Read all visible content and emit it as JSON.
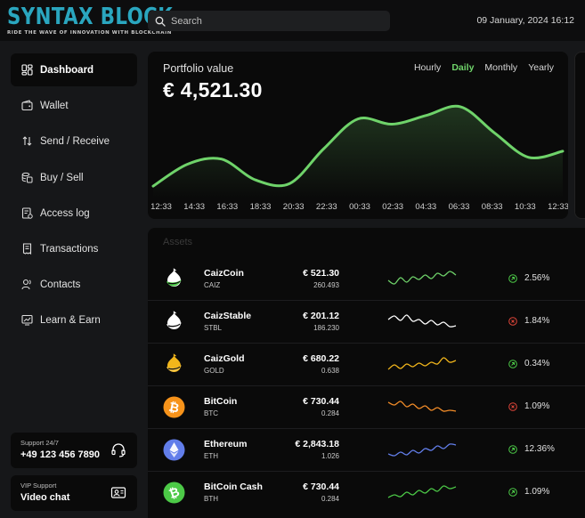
{
  "brand": {
    "title": "SYNTAX BLOCK",
    "tagline": "RIDE THE WAVE OF INNOVATION WITH BLOCKCHAIN"
  },
  "search": {
    "placeholder": "Search"
  },
  "datetime": "09 January, 2024 16:12",
  "nav": [
    {
      "label": "Dashboard",
      "icon": "dashboard-icon",
      "active": true
    },
    {
      "label": "Wallet",
      "icon": "wallet-icon"
    },
    {
      "label": "Send / Receive",
      "icon": "transfer-icon"
    },
    {
      "label": "Buy / Sell",
      "icon": "coins-icon"
    },
    {
      "label": "Access log",
      "icon": "access-log-icon"
    },
    {
      "label": "Transactions",
      "icon": "receipt-icon"
    },
    {
      "label": "Contacts",
      "icon": "contacts-icon"
    },
    {
      "label": "Learn & Earn",
      "icon": "chart-icon"
    }
  ],
  "support": {
    "caption": "Support 24/7",
    "phone": "+49 123 456 7890"
  },
  "vip": {
    "caption": "VIP Support",
    "label": "Video chat"
  },
  "portfolio": {
    "label": "Portfolio value",
    "value": "€ 4,521.30",
    "periods": [
      "Hourly",
      "Daily",
      "Monthly",
      "Yearly"
    ],
    "active_period": "Daily"
  },
  "chart_data": {
    "type": "line",
    "x": [
      "12:33",
      "14:33",
      "16:33",
      "18:33",
      "20:33",
      "22:33",
      "00:33",
      "02:33",
      "04:33",
      "06:33",
      "08:33",
      "10:33",
      "12:33"
    ],
    "values": [
      0.05,
      0.3,
      0.36,
      0.12,
      0.08,
      0.48,
      0.82,
      0.76,
      0.86,
      0.96,
      0.66,
      0.38,
      0.45
    ],
    "title": "",
    "xlabel": "",
    "ylabel": "",
    "color": "#6fd36a"
  },
  "assets": {
    "title": "Assets",
    "rows": [
      {
        "name": "CaizCoin",
        "symbol": "CAIZ",
        "price": "€ 521.30",
        "amount": "260.493",
        "change": "2.56%",
        "direction": "up",
        "icon": "caizcoin-icon",
        "spark_color": "#6fd36a",
        "spark": [
          0.4,
          0.2,
          0.55,
          0.3,
          0.6,
          0.45,
          0.7,
          0.5,
          0.8,
          0.65,
          0.9,
          0.7
        ]
      },
      {
        "name": "CaizStable",
        "symbol": "STBL",
        "price": "€ 201.12",
        "amount": "186.230",
        "change": "1.84%",
        "direction": "down",
        "icon": "caizstable-icon",
        "spark_color": "#ffffff",
        "spark": [
          0.6,
          0.8,
          0.55,
          0.85,
          0.5,
          0.6,
          0.35,
          0.55,
          0.3,
          0.45,
          0.2,
          0.25
        ]
      },
      {
        "name": "CaizGold",
        "symbol": "GOLD",
        "price": "€ 680.22",
        "amount": "0.638",
        "change": "0.34%",
        "direction": "up",
        "icon": "caizgold-icon",
        "spark_color": "#f2b61b",
        "spark": [
          0.2,
          0.45,
          0.25,
          0.5,
          0.35,
          0.55,
          0.4,
          0.6,
          0.5,
          0.85,
          0.6,
          0.7
        ]
      },
      {
        "name": "BitCoin",
        "symbol": "BTC",
        "price": "€ 730.44",
        "amount": "0.284",
        "change": "1.09%",
        "direction": "down",
        "icon": "bitcoin-icon",
        "spark_color": "#f28c28",
        "spark": [
          0.75,
          0.6,
          0.8,
          0.5,
          0.65,
          0.4,
          0.55,
          0.3,
          0.45,
          0.25,
          0.3,
          0.25
        ]
      },
      {
        "name": "Ethereum",
        "symbol": "ETH",
        "price": "€ 2,843.18",
        "amount": "1.026",
        "change": "12.36%",
        "direction": "up",
        "icon": "ethereum-icon",
        "spark_color": "#627eea",
        "spark": [
          0.25,
          0.15,
          0.35,
          0.2,
          0.45,
          0.3,
          0.55,
          0.45,
          0.7,
          0.55,
          0.8,
          0.75
        ]
      },
      {
        "name": "BitCoin Cash",
        "symbol": "BTH",
        "price": "€ 730.44",
        "amount": "0.284",
        "change": "1.09%",
        "direction": "up",
        "icon": "bitcoin-cash-icon",
        "spark_color": "#4cc947",
        "spark": [
          0.2,
          0.35,
          0.25,
          0.5,
          0.35,
          0.6,
          0.45,
          0.7,
          0.55,
          0.85,
          0.7,
          0.8
        ]
      }
    ]
  },
  "colors": {
    "up": "#4cc947",
    "down": "#e0463a",
    "accent": "#6fd36a",
    "brand": "#2aa6bf"
  }
}
